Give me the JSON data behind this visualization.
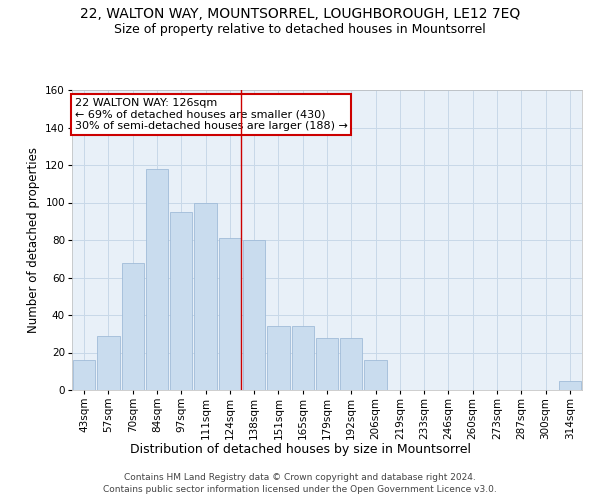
{
  "title": "22, WALTON WAY, MOUNTSORREL, LOUGHBOROUGH, LE12 7EQ",
  "subtitle": "Size of property relative to detached houses in Mountsorrel",
  "xlabel": "Distribution of detached houses by size in Mountsorrel",
  "ylabel": "Number of detached properties",
  "categories": [
    "43sqm",
    "57sqm",
    "70sqm",
    "84sqm",
    "97sqm",
    "111sqm",
    "124sqm",
    "138sqm",
    "151sqm",
    "165sqm",
    "179sqm",
    "192sqm",
    "206sqm",
    "219sqm",
    "233sqm",
    "246sqm",
    "260sqm",
    "273sqm",
    "287sqm",
    "300sqm",
    "314sqm"
  ],
  "values": [
    16,
    29,
    68,
    118,
    95,
    100,
    81,
    80,
    34,
    34,
    28,
    28,
    16,
    0,
    0,
    0,
    0,
    0,
    0,
    0,
    5
  ],
  "bar_color": "#c9dcee",
  "bar_edge_color": "#a0bcd8",
  "vline_x": 6.45,
  "vline_color": "#cc0000",
  "annotation_line1": "22 WALTON WAY: 126sqm",
  "annotation_line2": "← 69% of detached houses are smaller (430)",
  "annotation_line3": "30% of semi-detached houses are larger (188) →",
  "annotation_box_color": "#ffffff",
  "annotation_border_color": "#cc0000",
  "ylim": [
    0,
    160
  ],
  "yticks": [
    0,
    20,
    40,
    60,
    80,
    100,
    120,
    140,
    160
  ],
  "grid_color": "#c8d8e8",
  "bg_color": "#e8f0f8",
  "footer_line1": "Contains HM Land Registry data © Crown copyright and database right 2024.",
  "footer_line2": "Contains public sector information licensed under the Open Government Licence v3.0.",
  "title_fontsize": 10,
  "subtitle_fontsize": 9,
  "xlabel_fontsize": 9,
  "ylabel_fontsize": 8.5,
  "tick_fontsize": 7.5,
  "annotation_fontsize": 8,
  "footer_fontsize": 6.5
}
